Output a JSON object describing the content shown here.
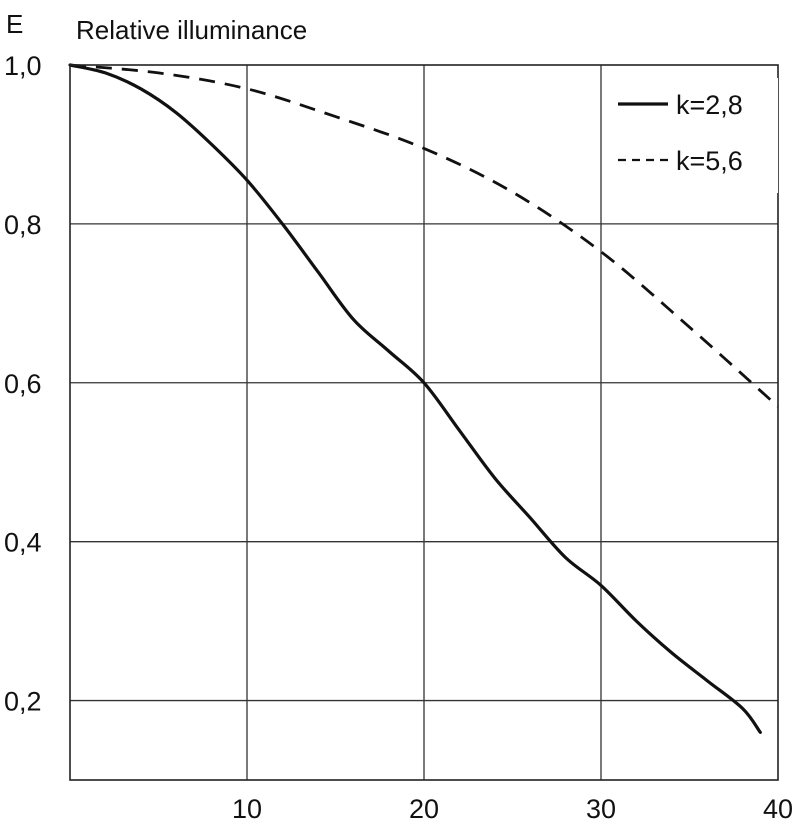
{
  "chart_data": {
    "type": "line",
    "ylabel_symbol": "E",
    "ylabel": "Relative illuminance",
    "xlim": [
      0,
      40
    ],
    "ylim": [
      0.1,
      1.0
    ],
    "x_ticks": [
      10,
      20,
      30,
      40
    ],
    "x_tick_labels": [
      "10",
      "20",
      "30",
      "40"
    ],
    "y_ticks": [
      0.2,
      0.4,
      0.6,
      0.8,
      1.0
    ],
    "y_tick_labels": [
      "0,2",
      "0,4",
      "0,6",
      "0,8",
      "1,0"
    ],
    "grid": true,
    "legend_position": "top-right",
    "series": [
      {
        "name": "k=2,8",
        "style": "solid",
        "color": "#111111",
        "x": [
          0,
          2,
          4,
          6,
          8,
          10,
          12,
          14,
          16,
          18,
          20,
          22,
          24,
          26,
          28,
          30,
          32,
          34,
          36,
          38,
          39
        ],
        "y": [
          1.0,
          0.99,
          0.97,
          0.94,
          0.9,
          0.855,
          0.8,
          0.74,
          0.68,
          0.64,
          0.6,
          0.54,
          0.48,
          0.43,
          0.38,
          0.345,
          0.3,
          0.26,
          0.225,
          0.19,
          0.16
        ]
      },
      {
        "name": "k=5,6",
        "style": "dashed",
        "color": "#111111",
        "x": [
          0,
          5,
          10,
          15,
          20,
          25,
          30,
          35,
          40
        ],
        "y": [
          1.0,
          0.99,
          0.97,
          0.935,
          0.895,
          0.84,
          0.765,
          0.67,
          0.57
        ]
      }
    ]
  }
}
